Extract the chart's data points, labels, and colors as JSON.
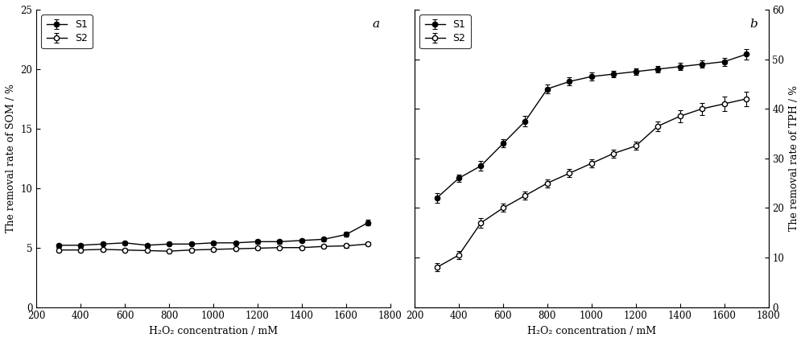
{
  "x_a": [
    300,
    400,
    500,
    600,
    700,
    800,
    900,
    1000,
    1100,
    1200,
    1300,
    1400,
    1500,
    1600,
    1700
  ],
  "panel_a": {
    "S1_y": [
      5.2,
      5.2,
      5.3,
      5.4,
      5.2,
      5.3,
      5.3,
      5.4,
      5.4,
      5.5,
      5.5,
      5.6,
      5.7,
      6.1,
      7.1
    ],
    "S1_err": [
      0.15,
      0.15,
      0.15,
      0.15,
      0.15,
      0.15,
      0.15,
      0.15,
      0.15,
      0.15,
      0.15,
      0.15,
      0.15,
      0.2,
      0.25
    ],
    "S2_y": [
      4.8,
      4.8,
      4.85,
      4.8,
      4.75,
      4.7,
      4.8,
      4.85,
      4.9,
      4.95,
      5.0,
      5.0,
      5.1,
      5.15,
      5.3
    ],
    "S2_err": [
      0.15,
      0.15,
      0.15,
      0.12,
      0.12,
      0.12,
      0.12,
      0.12,
      0.12,
      0.12,
      0.12,
      0.12,
      0.12,
      0.15,
      0.15
    ],
    "ylabel": "The removal rate of SOM / %",
    "ylim": [
      0,
      25
    ],
    "yticks": [
      0,
      5,
      10,
      15,
      20,
      25
    ],
    "label": "a"
  },
  "x_b": [
    300,
    400,
    500,
    600,
    700,
    800,
    900,
    1000,
    1100,
    1200,
    1300,
    1400,
    1500,
    1600,
    1700
  ],
  "panel_b": {
    "S1_y": [
      22.0,
      26.0,
      28.5,
      33.0,
      37.5,
      44.0,
      45.5,
      46.5,
      47.0,
      47.5,
      48.0,
      48.5,
      49.0,
      49.5,
      51.0
    ],
    "S1_err": [
      1.0,
      0.8,
      1.0,
      0.8,
      1.0,
      0.9,
      0.8,
      0.8,
      0.7,
      0.7,
      0.7,
      0.7,
      0.7,
      0.8,
      1.0
    ],
    "S2_y": [
      8.0,
      10.5,
      17.0,
      20.0,
      22.5,
      25.0,
      27.0,
      29.0,
      31.0,
      32.5,
      36.5,
      38.5,
      40.0,
      41.0,
      42.0
    ],
    "S2_err": [
      0.8,
      0.8,
      1.0,
      0.8,
      0.8,
      0.8,
      0.8,
      0.8,
      0.8,
      0.8,
      1.0,
      1.2,
      1.2,
      1.5,
      1.5
    ],
    "ylabel_right": "The removal rate of TPH / %",
    "ylim": [
      0,
      60
    ],
    "yticks": [
      0,
      10,
      20,
      30,
      40,
      50,
      60
    ],
    "label": "b"
  },
  "xlabel": "H₂O₂ concentration / mM",
  "xticks": [
    200,
    400,
    600,
    800,
    1000,
    1200,
    1400,
    1600,
    1800
  ],
  "xlim": [
    200,
    1800
  ],
  "bg_color": "#ffffff",
  "fontsize_label": 9,
  "fontsize_tick": 8.5,
  "fontsize_legend": 9,
  "fontsize_panel_label": 11
}
